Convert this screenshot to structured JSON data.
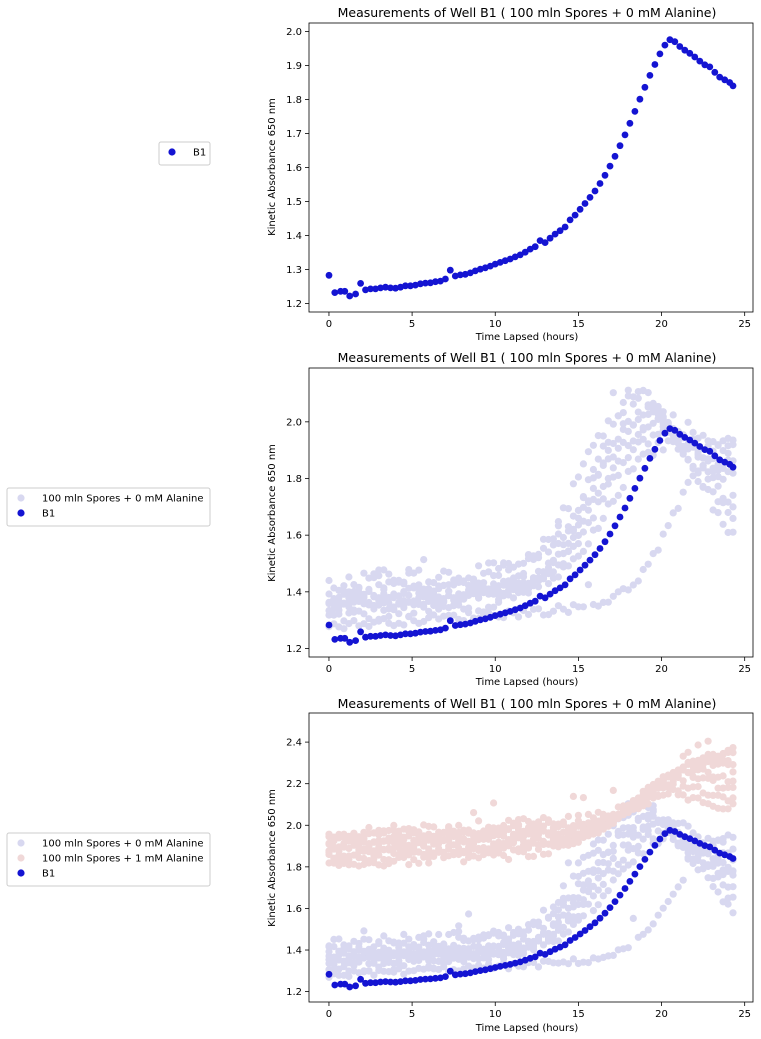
{
  "chart_data": [
    {
      "type": "scatter",
      "title": "Measurements of Well  B1 ( 100  mln Spores +  0 mM Alanine)",
      "xlabel": "Time Lapsed (hours)",
      "ylabel": "Kinetic Absorbance 650 nm",
      "xlim": [
        -1.2,
        25.5
      ],
      "ylim": [
        1.175,
        2.025
      ],
      "xticks": [
        0,
        5,
        10,
        15,
        20,
        25
      ],
      "yticks": [
        1.2,
        1.3,
        1.4,
        1.5,
        1.6,
        1.7,
        1.8,
        1.9,
        2.0
      ],
      "ytick_labels": [
        "1.2",
        "1.3",
        "1.4",
        "1.5",
        "1.6",
        "1.7",
        "1.8",
        "1.9",
        "2.0"
      ],
      "legend": {
        "position": "outside-left",
        "entries": [
          "B1"
        ]
      },
      "series": [
        {
          "name": "B1",
          "role": "highlight",
          "color": "#1414d2"
        }
      ]
    },
    {
      "type": "scatter",
      "title": "Measurements of Well  B1 ( 100  mln Spores +  0 mM Alanine)",
      "xlabel": "Time Lapsed (hours)",
      "ylabel": "Kinetic Absorbance 650 nm",
      "xlim": [
        -1.2,
        25.5
      ],
      "ylim": [
        1.17,
        2.19
      ],
      "xticks": [
        0,
        5,
        10,
        15,
        20,
        25
      ],
      "yticks": [
        1.2,
        1.4,
        1.6,
        1.8,
        2.0
      ],
      "ytick_labels": [
        "1.2",
        "1.4",
        "1.6",
        "1.8",
        "2.0"
      ],
      "legend": {
        "position": "outside-left",
        "entries": [
          "100 mln Spores +  0 mM Alanine",
          "B1"
        ]
      },
      "series": [
        {
          "name": "100 mln Spores +  0 mM Alanine",
          "role": "group",
          "color": "#d8d8f0",
          "wells": [
            {
              "base": 1.31,
              "peak": 2.12,
              "peak_t": 18.8,
              "end": 1.6,
              "noise": 0.025
            },
            {
              "base": 1.34,
              "peak": 2.08,
              "peak_t": 19.2,
              "end": 1.7,
              "noise": 0.02
            },
            {
              "base": 1.36,
              "peak": 2.03,
              "peak_t": 19.6,
              "end": 1.76,
              "noise": 0.02
            },
            {
              "base": 1.38,
              "peak": 1.99,
              "peak_t": 19.9,
              "end": 1.8,
              "noise": 0.02
            },
            {
              "base": 1.4,
              "peak": 2.13,
              "peak_t": 18.5,
              "end": 1.65,
              "noise": 0.03
            },
            {
              "base": 1.43,
              "peak": 2.05,
              "peak_t": 19.4,
              "end": 1.88,
              "noise": 0.03
            },
            {
              "base": 1.36,
              "peak": 1.95,
              "peak_t": 20.3,
              "end": 1.84,
              "noise": 0.02
            },
            {
              "base": 1.28,
              "peak": 1.98,
              "peak_t": 24.3,
              "end": 1.98,
              "noise": 0.015
            }
          ]
        },
        {
          "name": "B1",
          "role": "highlight",
          "color": "#1414d2"
        }
      ]
    },
    {
      "type": "scatter",
      "title": "Measurements of Well  B1 ( 100  mln Spores +  0 mM Alanine)",
      "xlabel": "Time Lapsed (hours)",
      "ylabel": "Kinetic Absorbance 650 nm",
      "xlim": [
        -1.2,
        25.5
      ],
      "ylim": [
        1.15,
        2.54
      ],
      "xticks": [
        0,
        5,
        10,
        15,
        20,
        25
      ],
      "yticks": [
        1.2,
        1.4,
        1.6,
        1.8,
        2.0,
        2.2,
        2.4
      ],
      "ytick_labels": [
        "1.2",
        "1.4",
        "1.6",
        "1.8",
        "2.0",
        "2.2",
        "2.4"
      ],
      "legend": {
        "position": "outside-left",
        "entries": [
          "100 mln Spores +  0 mM Alanine",
          "100 mln Spores + 1 mM Alanine",
          "B1"
        ]
      },
      "series": [
        {
          "name": "100 mln Spores +  0 mM Alanine",
          "role": "group",
          "color": "#d8d8f0",
          "wells": [
            {
              "base": 1.31,
              "peak": 2.12,
              "peak_t": 18.8,
              "end": 1.6,
              "noise": 0.025
            },
            {
              "base": 1.34,
              "peak": 2.08,
              "peak_t": 19.2,
              "end": 1.7,
              "noise": 0.02
            },
            {
              "base": 1.36,
              "peak": 2.03,
              "peak_t": 19.6,
              "end": 1.76,
              "noise": 0.02
            },
            {
              "base": 1.38,
              "peak": 1.99,
              "peak_t": 19.9,
              "end": 1.8,
              "noise": 0.02
            },
            {
              "base": 1.4,
              "peak": 2.13,
              "peak_t": 18.5,
              "end": 1.65,
              "noise": 0.03
            },
            {
              "base": 1.43,
              "peak": 2.05,
              "peak_t": 19.4,
              "end": 1.88,
              "noise": 0.03
            },
            {
              "base": 1.36,
              "peak": 1.95,
              "peak_t": 20.3,
              "end": 1.84,
              "noise": 0.02
            },
            {
              "base": 1.28,
              "peak": 1.98,
              "peak_t": 24.3,
              "end": 1.98,
              "noise": 0.015
            }
          ]
        },
        {
          "name": "100 mln Spores + 1 mM Alanine",
          "role": "group",
          "color": "#f0d8d8",
          "wells": [
            {
              "base": 1.81,
              "peak": 2.16,
              "peak_t": 20.5,
              "end": 2.06,
              "noise": 0.02
            },
            {
              "base": 1.84,
              "peak": 2.2,
              "peak_t": 21.0,
              "end": 2.11,
              "noise": 0.02
            },
            {
              "base": 1.86,
              "peak": 2.24,
              "peak_t": 21.5,
              "end": 2.17,
              "noise": 0.02
            },
            {
              "base": 1.88,
              "peak": 2.27,
              "peak_t": 22.0,
              "end": 2.22,
              "noise": 0.02
            },
            {
              "base": 1.9,
              "peak": 2.3,
              "peak_t": 22.3,
              "end": 2.27,
              "noise": 0.02
            },
            {
              "base": 1.92,
              "peak": 2.33,
              "peak_t": 22.8,
              "end": 2.31,
              "noise": 0.02
            },
            {
              "base": 1.94,
              "peak": 2.35,
              "peak_t": 23.2,
              "end": 2.34,
              "noise": 0.02
            },
            {
              "base": 1.96,
              "peak": 2.36,
              "peak_t": 23.6,
              "end": 2.36,
              "noise": 0.025
            }
          ]
        },
        {
          "name": "B1",
          "role": "highlight",
          "color": "#1414d2"
        }
      ]
    }
  ],
  "b1_series": {
    "x": [
      0,
      0.35,
      0.7,
      0.95,
      1.25,
      1.6,
      1.9,
      2.2,
      2.5,
      2.8,
      3.1,
      3.4,
      3.7,
      4.0,
      4.3,
      4.6,
      4.9,
      5.2,
      5.5,
      5.8,
      6.1,
      6.4,
      6.7,
      7.0,
      7.3,
      7.6,
      7.9,
      8.2,
      8.5,
      8.8,
      9.1,
      9.4,
      9.7,
      10.0,
      10.3,
      10.6,
      10.9,
      11.2,
      11.5,
      11.8,
      12.1,
      12.4,
      12.7,
      13.0,
      13.3,
      13.6,
      13.9,
      14.2,
      14.5,
      14.8,
      15.1,
      15.4,
      15.7,
      16.0,
      16.3,
      16.6,
      16.9,
      17.2,
      17.5,
      17.8,
      18.1,
      18.4,
      18.7,
      19.0,
      19.3,
      19.6,
      19.9,
      20.2,
      20.5,
      20.8,
      21.1,
      21.4,
      21.7,
      22.0,
      22.3,
      22.6,
      22.9,
      23.2,
      23.5,
      23.8,
      24.1,
      24.3
    ],
    "y": [
      1.283,
      1.232,
      1.236,
      1.236,
      1.222,
      1.228,
      1.259,
      1.24,
      1.243,
      1.243,
      1.246,
      1.248,
      1.246,
      1.245,
      1.248,
      1.252,
      1.252,
      1.254,
      1.258,
      1.26,
      1.261,
      1.264,
      1.266,
      1.272,
      1.298,
      1.281,
      1.284,
      1.286,
      1.29,
      1.296,
      1.301,
      1.305,
      1.31,
      1.316,
      1.321,
      1.326,
      1.331,
      1.337,
      1.343,
      1.351,
      1.36,
      1.367,
      1.385,
      1.379,
      1.392,
      1.404,
      1.414,
      1.425,
      1.446,
      1.46,
      1.477,
      1.494,
      1.512,
      1.531,
      1.553,
      1.577,
      1.604,
      1.633,
      1.664,
      1.696,
      1.73,
      1.765,
      1.801,
      1.836,
      1.871,
      1.903,
      1.934,
      1.96,
      1.976,
      1.97,
      1.956,
      1.945,
      1.936,
      1.925,
      1.913,
      1.902,
      1.896,
      1.88,
      1.866,
      1.858,
      1.85,
      1.84
    ]
  }
}
